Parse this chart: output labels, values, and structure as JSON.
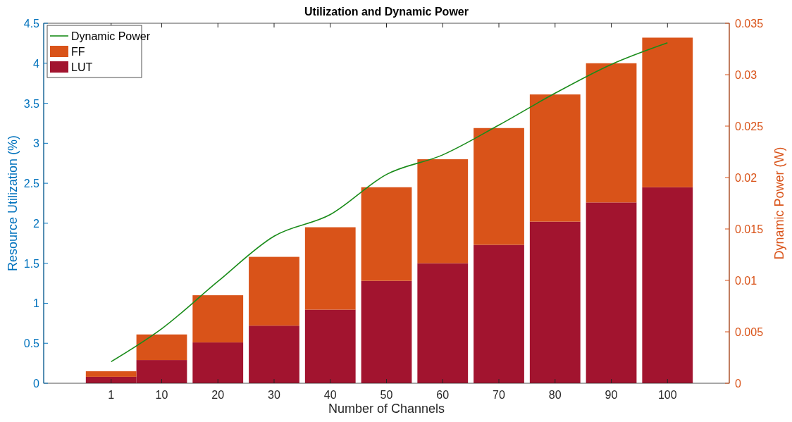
{
  "chart_data": {
    "type": "bar",
    "title": "Utilization and Dynamic Power",
    "xlabel": "Number of Channels",
    "ylabel": "Resource Utilization (%)",
    "y2label": "Dynamic Power (W)",
    "x": [
      1,
      10,
      20,
      30,
      40,
      50,
      60,
      70,
      80,
      90,
      100
    ],
    "stacked": true,
    "series": [
      {
        "name": "LUT",
        "color": "#a2142f",
        "values": [
          0.08,
          0.29,
          0.51,
          0.72,
          0.92,
          1.28,
          1.5,
          1.73,
          2.02,
          2.26,
          2.45
        ]
      },
      {
        "name": "FF",
        "color": "#d95319",
        "values": [
          0.07,
          0.32,
          0.59,
          0.86,
          1.03,
          1.17,
          1.3,
          1.46,
          1.59,
          1.74,
          1.87
        ]
      },
      {
        "name": "Dynamic Power",
        "type": "line",
        "axis": "y2",
        "color": "#1a8c1a",
        "values": [
          0.0021,
          0.0053,
          0.0099,
          0.0143,
          0.0164,
          0.0203,
          0.0222,
          0.0251,
          0.0282,
          0.031,
          0.0331
        ]
      }
    ],
    "xlim": [
      -11,
      111
    ],
    "xticks": [
      1,
      10,
      20,
      30,
      40,
      50,
      60,
      70,
      80,
      90,
      100
    ],
    "ylim": [
      0,
      4.5
    ],
    "yticks": [
      0,
      0.5,
      1,
      1.5,
      2,
      2.5,
      3,
      3.5,
      4,
      4.5
    ],
    "y2lim": [
      0,
      0.035
    ],
    "y2ticks": [
      0,
      0.005,
      0.01,
      0.015,
      0.02,
      0.025,
      0.03,
      0.035
    ],
    "legend": "top left",
    "grid": false,
    "marker": "none",
    "line_style": "solid"
  }
}
